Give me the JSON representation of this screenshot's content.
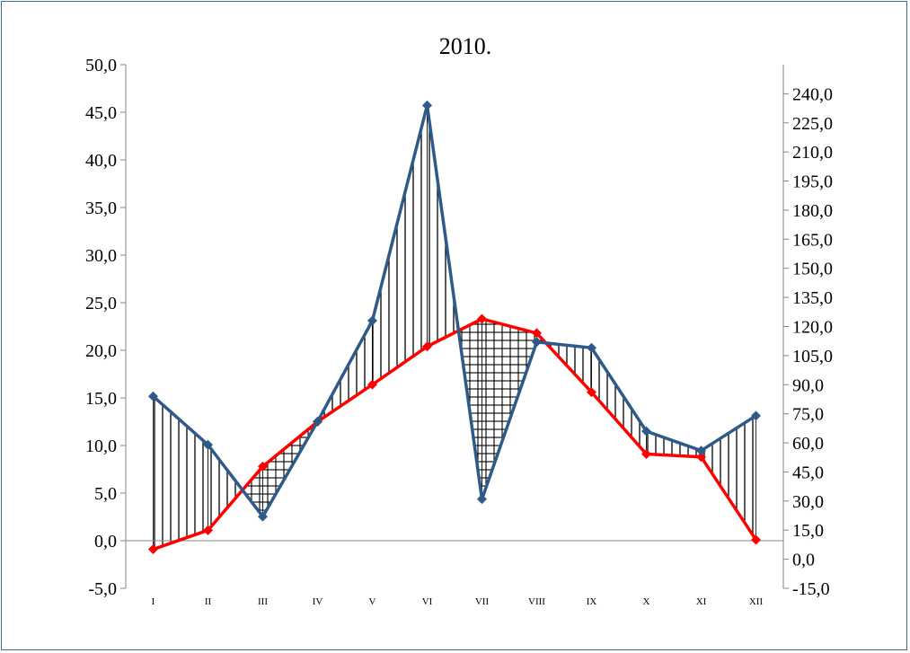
{
  "chart_data": {
    "type": "line",
    "title": "2010.",
    "categories": [
      "I",
      "II",
      "III",
      "IV",
      "V",
      "VI",
      "VII",
      "VIII",
      "IX",
      "X",
      "XI",
      "XII"
    ],
    "y_left": {
      "ticks": [
        "-5,0",
        "0,0",
        "5,0",
        "10,0",
        "15,0",
        "20,0",
        "25,0",
        "30,0",
        "35,0",
        "40,0",
        "45,0",
        "50,0"
      ],
      "range": [
        -5,
        50
      ]
    },
    "y_right": {
      "ticks": [
        "-15,0",
        "0,0",
        "15,0",
        "30,0",
        "45,0",
        "60,0",
        "75,0",
        "90,0",
        "105,0",
        "120,0",
        "135,0",
        "150,0",
        "165,0",
        "180,0",
        "195,0",
        "210,0",
        "225,0",
        "240,0"
      ],
      "range": [
        -15,
        255
      ]
    },
    "series": [
      {
        "axis": "left",
        "color": "#ff0000",
        "values": [
          -0.9,
          1.1,
          7.8,
          12.5,
          16.4,
          20.4,
          23.3,
          21.8,
          15.6,
          9.1,
          8.8,
          0.1
        ]
      },
      {
        "axis": "right",
        "color": "#2e5a8a",
        "values": [
          84.0,
          59.0,
          22.0,
          71.0,
          123.0,
          234.0,
          31.0,
          112.0,
          109.0,
          66.0,
          56.0,
          74.0
        ]
      }
    ],
    "grid": false,
    "legend": "none"
  }
}
